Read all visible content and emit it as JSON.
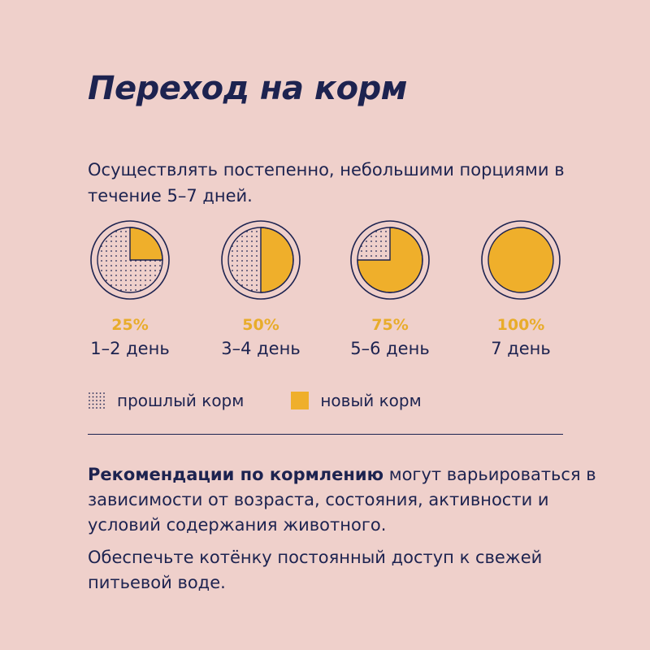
{
  "title": "Переход на корм",
  "intro": "Осуществлять постепенно, небольшими порциями в течение 5–7 дней.",
  "colors": {
    "background": "#efd0cb",
    "text": "#1d2350",
    "new_food": "#efaf2b",
    "percent_text": "#e8ac2b"
  },
  "stages": [
    {
      "percent_label": "25%",
      "days": "1–2 день",
      "new_fraction": 0.25
    },
    {
      "percent_label": "50%",
      "days": "3–4 день",
      "new_fraction": 0.5
    },
    {
      "percent_label": "75%",
      "days": "5–6 день",
      "new_fraction": 0.75
    },
    {
      "percent_label": "100%",
      "days": "7 день",
      "new_fraction": 1.0
    }
  ],
  "legend": {
    "old_label": "прошлый корм",
    "new_label": "новый корм"
  },
  "recommendation": {
    "bold": "Рекомендации по кормлению",
    "rest": " могут варьироваться в зависимости от возраста, состояния, активности и условий содержания животного."
  },
  "water_note": "Обеспечьте котёнку постоянный доступ к свежей питьевой воде."
}
